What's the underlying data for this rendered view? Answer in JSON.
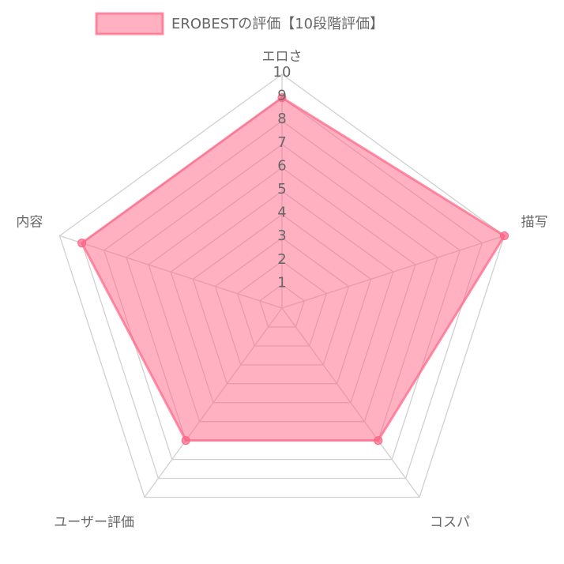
{
  "chart_data": {
    "type": "radar",
    "categories": [
      "エロさ",
      "描写",
      "コスパ",
      "ユーザー評価",
      "内容"
    ],
    "series": [
      {
        "name": "EROBESTの評価【10段階評価】",
        "color": "#ff6384",
        "values": [
          9,
          10,
          7,
          7,
          9
        ]
      }
    ],
    "ylim": [
      0,
      10
    ],
    "yticks": [
      1,
      2,
      3,
      4,
      5,
      6,
      7,
      8,
      9,
      10
    ],
    "grid": true,
    "legend": "top"
  }
}
